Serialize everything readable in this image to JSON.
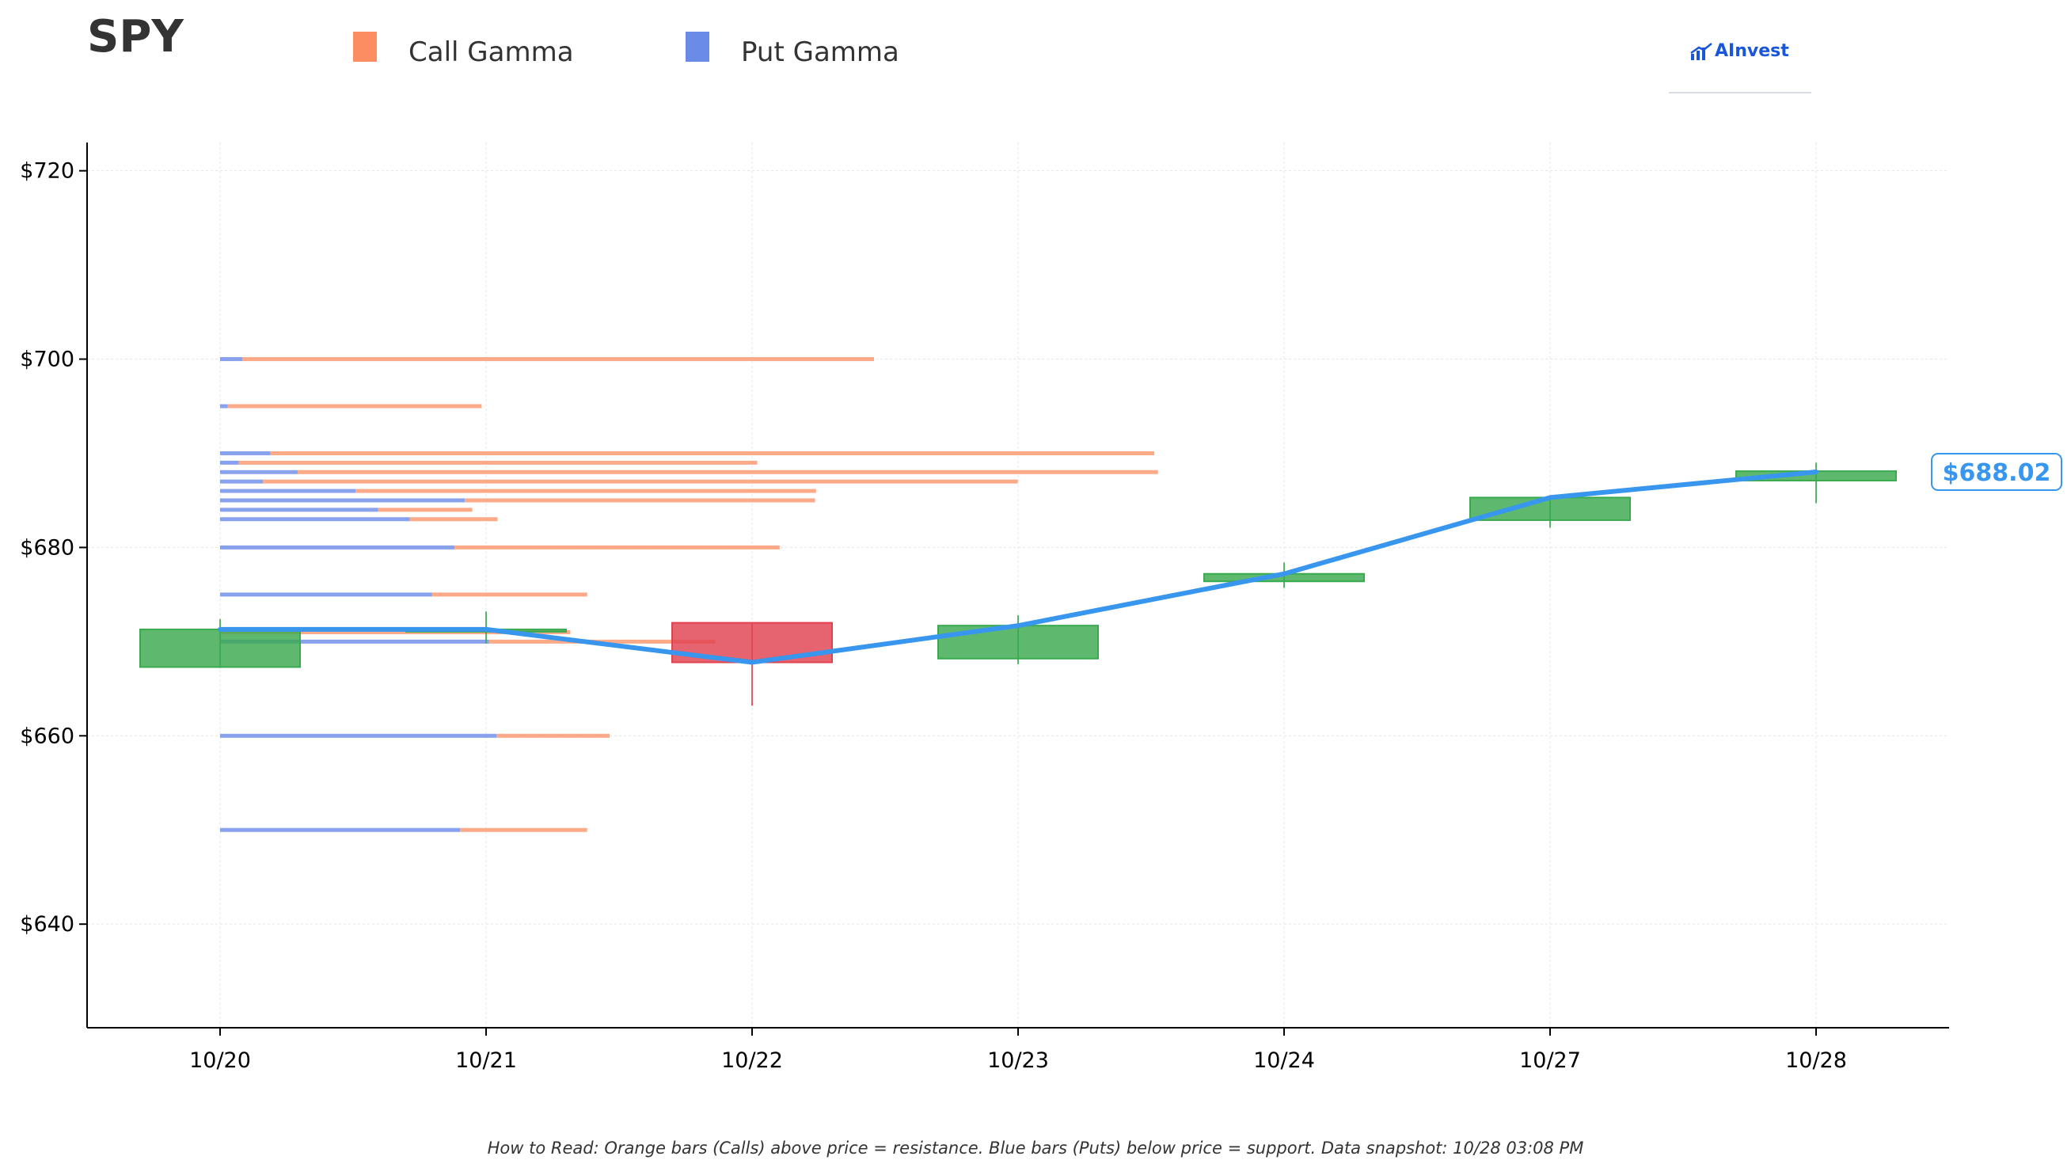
{
  "header": {
    "ticker": "SPY",
    "legend": [
      {
        "label": "Call Gamma",
        "color": "#fc8d62"
      },
      {
        "label": "Put Gamma",
        "color": "#6b8be8"
      }
    ],
    "brand": "AInvest"
  },
  "footnote": "How to Read: Orange bars (Calls) above price = resistance. Blue bars (Puts) below price = support. Data snapshot: 10/28 03:08 PM",
  "chart_data": {
    "type": "candlestick",
    "title": "SPY",
    "categories": [
      "10/20",
      "10/21",
      "10/22",
      "10/23",
      "10/24",
      "10/27",
      "10/28"
    ],
    "ylim": [
      629,
      723
    ],
    "yticks": [
      640,
      660,
      680,
      700,
      720
    ],
    "ytick_labels": [
      "$640",
      "$660",
      "$680",
      "$700",
      "$720"
    ],
    "grid": true,
    "colors": {
      "up": "#3aaa4f",
      "down": "#e0424f",
      "line": "#3896ef",
      "call": "#fc8d62",
      "put": "#6b8be8"
    },
    "candles": [
      {
        "date": "10/20",
        "open": 667.3,
        "close": 671.3,
        "high": 672.4,
        "low": 667.2
      },
      {
        "date": "10/21",
        "open": 671.3,
        "close": 671.3,
        "high": 673.2,
        "low": 669.8
      },
      {
        "date": "10/22",
        "open": 672.0,
        "close": 667.8,
        "high": 672.0,
        "low": 663.2
      },
      {
        "date": "10/23",
        "open": 668.2,
        "close": 671.7,
        "high": 672.8,
        "low": 667.6
      },
      {
        "date": "10/24",
        "open": 676.4,
        "close": 677.2,
        "high": 678.4,
        "low": 675.7
      },
      {
        "date": "10/27",
        "open": 682.9,
        "close": 685.3,
        "high": 685.4,
        "low": 682.1
      },
      {
        "date": "10/28",
        "open": 687.1,
        "close": 688.1,
        "high": 689.0,
        "low": 684.7
      }
    ],
    "price_line": {
      "name": "Price",
      "values": [
        671.3,
        671.3,
        667.8,
        671.7,
        677.2,
        685.3,
        688.02
      ]
    },
    "last_price_label": "$688.02",
    "gamma_x_range": [
      0,
      100
    ],
    "gamma_levels": [
      {
        "strike": 700,
        "put": 2.4,
        "call": 67.6
      },
      {
        "strike": 695,
        "put": 0.8,
        "call": 27.2
      },
      {
        "strike": 690,
        "put": 5.4,
        "call": 94.6
      },
      {
        "strike": 689,
        "put": 2.0,
        "call": 55.5
      },
      {
        "strike": 688,
        "put": 8.3,
        "call": 92.1
      },
      {
        "strike": 687,
        "put": 4.6,
        "call": 80.8
      },
      {
        "strike": 686,
        "put": 14.5,
        "call": 49.3
      },
      {
        "strike": 685,
        "put": 26.2,
        "call": 37.5
      },
      {
        "strike": 684,
        "put": 16.9,
        "call": 10.1
      },
      {
        "strike": 683,
        "put": 20.3,
        "call": 9.4
      },
      {
        "strike": 680,
        "put": 25.1,
        "call": 34.8
      },
      {
        "strike": 675,
        "put": 22.7,
        "call": 16.6
      },
      {
        "strike": 671,
        "put": 0,
        "call": 37.5
      },
      {
        "strike": 670,
        "put": 28.8,
        "call": 24.2
      },
      {
        "strike": 660,
        "put": 29.6,
        "call": 12.1
      },
      {
        "strike": 650,
        "put": 25.7,
        "call": 13.6
      }
    ]
  }
}
